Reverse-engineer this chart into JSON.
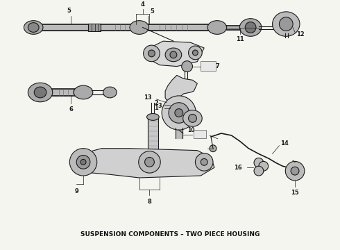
{
  "caption": "SUSPENSION COMPONENTS – TWO PIECE HOUSING",
  "background_color": "#f5f5f0",
  "caption_fontsize": 6.5,
  "caption_color": "#111111",
  "fig_width": 4.9,
  "fig_height": 3.6,
  "dpi": 100
}
